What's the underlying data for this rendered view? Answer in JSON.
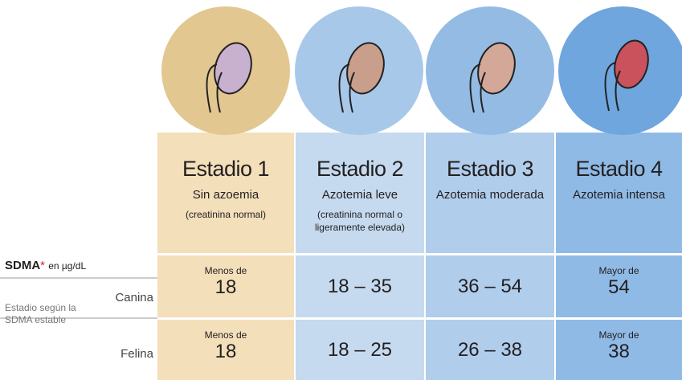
{
  "table": {
    "sdma_label": "SDMA",
    "asterisk": "*",
    "unit": "en µg/dL",
    "side_label": "Estadio según la SDMA estable",
    "stages": [
      {
        "title": "Estadio 1",
        "subtitle": "Sin azoemia",
        "note": "(creatinina normal)"
      },
      {
        "title": "Estadio 2",
        "subtitle": "Azotemia leve",
        "note": "(creatinina normal o ligeramente elevada)"
      },
      {
        "title": "Estadio 3",
        "subtitle": "Azotemia moderada"
      },
      {
        "title": "Estadio 4",
        "subtitle": "Azotemia intensa"
      }
    ],
    "rows": [
      {
        "species": "Canina",
        "cells": [
          {
            "prefix": "Menos de",
            "value": "18"
          },
          {
            "value": "18 – 35"
          },
          {
            "value": "36 – 54"
          },
          {
            "prefix": "Mayor de",
            "value": "54"
          }
        ]
      },
      {
        "species": "Felina",
        "cells": [
          {
            "prefix": "Menos de",
            "value": "18"
          },
          {
            "value": "18 – 25"
          },
          {
            "value": "26 – 38"
          },
          {
            "prefix": "Mayor de",
            "value": "38"
          }
        ]
      }
    ]
  }
}
